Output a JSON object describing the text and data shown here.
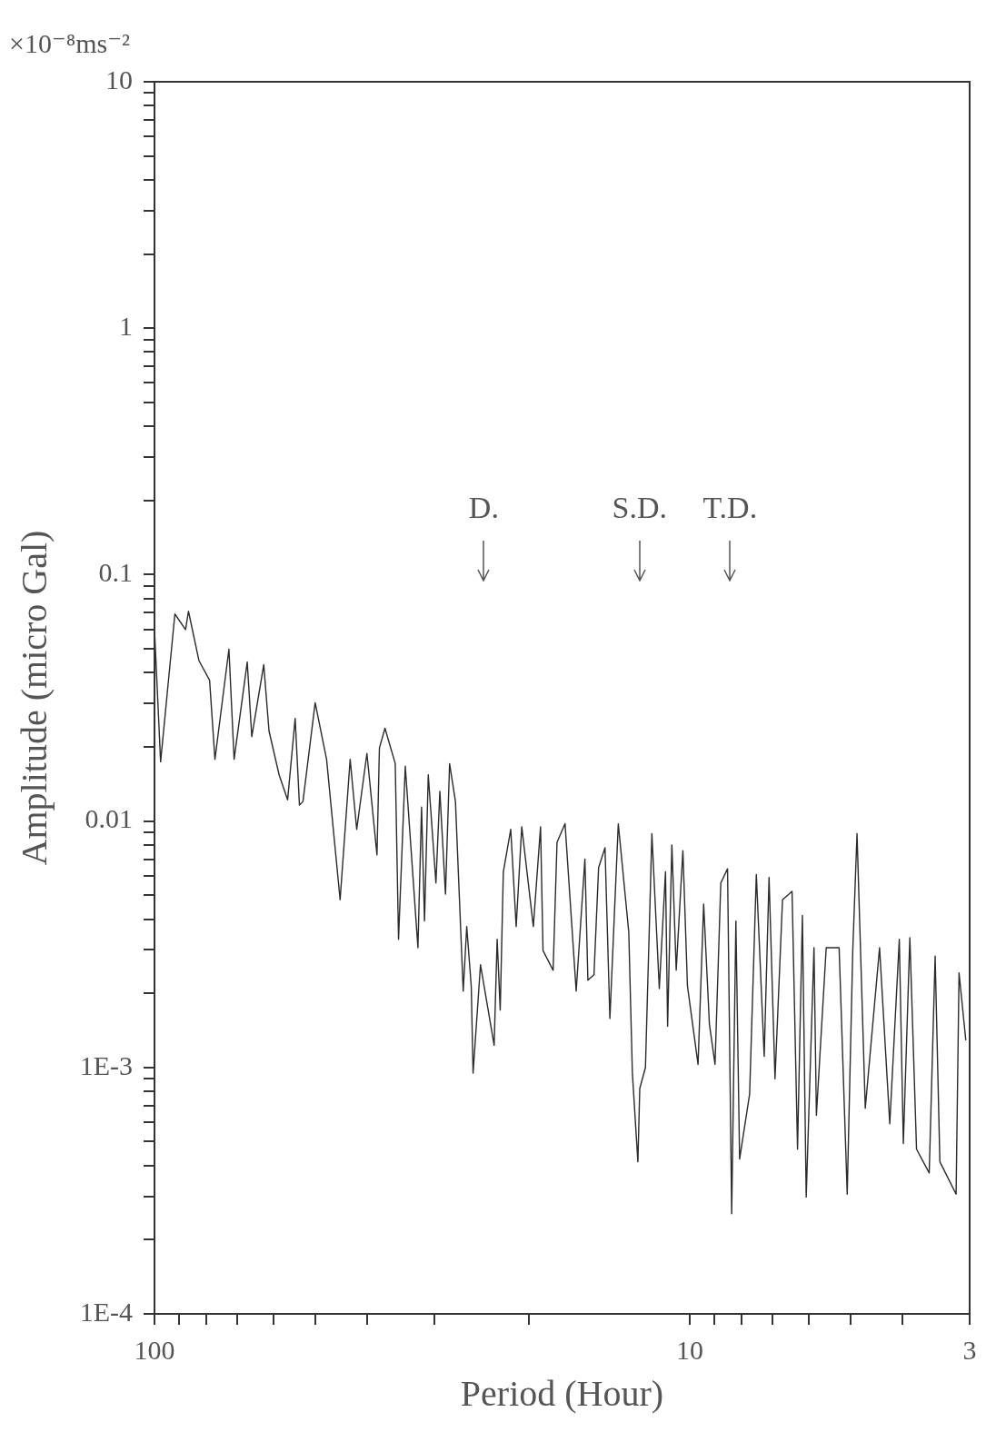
{
  "chart_data": {
    "type": "line",
    "xlabel": "Period (Hour)",
    "ylabel": "Amplitude (micro Gal)",
    "log": "xy",
    "grid": false,
    "legend": false,
    "marker": "none",
    "line_style": "solid",
    "xlim": [
      100,
      3
    ],
    "ylim": [
      0.0001,
      10
    ],
    "xticks": [
      100,
      {
        "value": 90,
        "label": null
      },
      {
        "value": 80,
        "label": null
      },
      {
        "value": 70,
        "label": null
      },
      {
        "value": 60,
        "label": null
      },
      {
        "value": 50,
        "label": null
      },
      {
        "value": 40,
        "label": null
      },
      {
        "value": 30,
        "label": null
      },
      {
        "value": 20,
        "label": null
      },
      10,
      {
        "value": 9,
        "label": null
      },
      {
        "value": 8,
        "label": null
      },
      {
        "value": 7,
        "label": null
      },
      {
        "value": 6,
        "label": null
      },
      {
        "value": 5,
        "label": null
      },
      {
        "value": 4,
        "label": null
      },
      3
    ],
    "yticks": [
      {
        "value": 0.0001,
        "label": "1E-4"
      },
      {
        "value": 0.0002,
        "label": null
      },
      {
        "value": 0.0003,
        "label": null
      },
      {
        "value": 0.0004,
        "label": null
      },
      {
        "value": 0.0005,
        "label": null
      },
      {
        "value": 0.0006,
        "label": null
      },
      {
        "value": 0.0007,
        "label": null
      },
      {
        "value": 0.0008,
        "label": null
      },
      {
        "value": 0.0009,
        "label": null
      },
      {
        "value": 0.001,
        "label": "1E-3"
      },
      {
        "value": 0.002,
        "label": null
      },
      {
        "value": 0.003,
        "label": null
      },
      {
        "value": 0.004,
        "label": null
      },
      {
        "value": 0.005,
        "label": null
      },
      {
        "value": 0.006,
        "label": null
      },
      {
        "value": 0.007,
        "label": null
      },
      {
        "value": 0.008,
        "label": null
      },
      {
        "value": 0.009,
        "label": null
      },
      0.01,
      {
        "value": 0.02,
        "label": null
      },
      {
        "value": 0.03,
        "label": null
      },
      {
        "value": 0.04,
        "label": null
      },
      {
        "value": 0.05,
        "label": null
      },
      {
        "value": 0.06,
        "label": null
      },
      {
        "value": 0.07,
        "label": null
      },
      {
        "value": 0.08,
        "label": null
      },
      {
        "value": 0.09,
        "label": null
      },
      0.1,
      {
        "value": 0.2,
        "label": null
      },
      {
        "value": 0.3,
        "label": null
      },
      {
        "value": 0.4,
        "label": null
      },
      {
        "value": 0.5,
        "label": null
      },
      {
        "value": 0.6,
        "label": null
      },
      {
        "value": 0.7,
        "label": null
      },
      {
        "value": 0.8,
        "label": null
      },
      {
        "value": 0.9,
        "label": null
      },
      1,
      {
        "value": 2,
        "label": null
      },
      {
        "value": 3,
        "label": null
      },
      {
        "value": 4,
        "label": null
      },
      {
        "value": 5,
        "label": null
      },
      {
        "value": 6,
        "label": null
      },
      {
        "value": 7,
        "label": null
      },
      {
        "value": 8,
        "label": null
      },
      {
        "value": 9,
        "label": null
      },
      10
    ],
    "annotations": [
      "×10⁻⁸ms⁻²",
      "D.",
      "S.D.",
      "T.D."
    ],
    "x": [
      100,
      97.4,
      91.6,
      87.5,
      86.4,
      82.6,
      78.9,
      77.1,
      72.6,
      71.0,
      67.1,
      65.8,
      62.5,
      61.1,
      58.5,
      56.4,
      54.6,
      53.6,
      52.8,
      50.1,
      47.7,
      45.0,
      43.1,
      41.9,
      40.1,
      38.4,
      38.0,
      37.1,
      35.5,
      35.0,
      34.0,
      32.2,
      31.7,
      31.3,
      30.8,
      29.8,
      29.3,
      28.6,
      28.1,
      27.4,
      26.5,
      26.1,
      25.6,
      25.4,
      24.6,
      23.2,
      22.9,
      22.6,
      22.3,
      21.6,
      21.1,
      20.6,
      19.6,
      19.0,
      18.8,
      18.0,
      17.7,
      17.1,
      16.3,
      15.7,
      15.5,
      15.1,
      14.8,
      14.4,
      14.1,
      13.6,
      13.0,
      12.8,
      12.5,
      12.4,
      12.1,
      11.83,
      11.77,
      11.4,
      11.1,
      11.0,
      10.8,
      10.6,
      10.3,
      10.1,
      9.65,
      9.42,
      9.19,
      8.97,
      8.75,
      8.5,
      8.35,
      8.2,
      8.07,
      7.73,
      7.51,
      7.26,
      7.11,
      6.93,
      6.71,
      6.44,
      6.29,
      6.16,
      6.06,
      5.86,
      5.8,
      5.56,
      5.26,
      5.08,
      4.96,
      4.87,
      4.7,
      4.42,
      4.23,
      4.06,
      3.99,
      3.88,
      3.77,
      3.57,
      3.48,
      3.41,
      3.18,
      3.14,
      3.05
    ],
    "series": [
      {
        "color": "#2b2b2b",
        "values": [
          0.06,
          0.0174,
          0.0692,
          0.0598,
          0.071,
          0.0448,
          0.0373,
          0.0178,
          0.0498,
          0.0178,
          0.0442,
          0.022,
          0.0431,
          0.0232,
          0.0154,
          0.0122,
          0.0261,
          0.0116,
          0.012,
          0.0302,
          0.0178,
          0.00479,
          0.0178,
          0.00925,
          0.0188,
          0.00729,
          0.0198,
          0.0238,
          0.0171,
          0.00331,
          0.0167,
          0.00306,
          0.0114,
          0.00393,
          0.0154,
          0.00561,
          0.0132,
          0.00505,
          0.0171,
          0.012,
          0.00204,
          0.00373,
          0.00214,
          0.000948,
          0.00261,
          0.00123,
          0.00331,
          0.00171,
          0.00622,
          0.00925,
          0.00373,
          0.00948,
          0.00373,
          0.00948,
          0.00298,
          0.00248,
          0.0082,
          0.00975,
          0.00204,
          0.00701,
          0.00226,
          0.00238,
          0.00648,
          0.00779,
          0.00158,
          0.00975,
          0.00354,
          0.000948,
          0.000414,
          0.000821,
          0.001,
          0.0059,
          0.00889,
          0.00209,
          0.00622,
          0.00147,
          0.008,
          0.00248,
          0.00759,
          0.00214,
          0.00103,
          0.0046,
          0.0015,
          0.00103,
          0.00561,
          0.0064,
          0.000255,
          0.00393,
          0.000425,
          0.000779,
          0.00607,
          0.00111,
          0.0059,
          0.0009,
          0.00479,
          0.00518,
          0.000466,
          0.00414,
          0.000298,
          0.00306,
          0.000639,
          0.00306,
          0.00306,
          0.000306,
          0.00298,
          0.00889,
          0.000683,
          0.00306,
          0.000591,
          0.00331,
          0.000491,
          0.00336,
          0.000466,
          0.000373,
          0.00283,
          0.000414,
          0.000306,
          0.00242,
          0.00129
        ]
      }
    ]
  }
}
